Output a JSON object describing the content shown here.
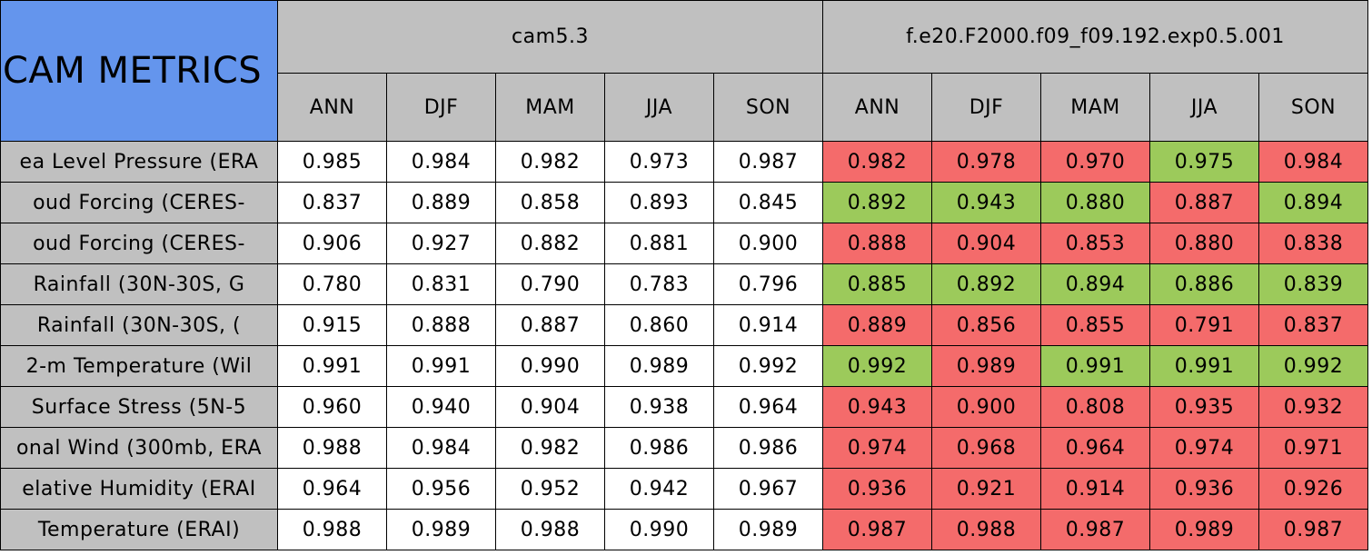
{
  "title": "CAM METRICS",
  "groups": [
    {
      "name": "cam5.3",
      "seasons": [
        "ANN",
        "DJF",
        "MAM",
        "JJA",
        "SON"
      ]
    },
    {
      "name": "f.e20.F2000.f09_f09.192.exp0.5.001",
      "seasons": [
        "ANN",
        "DJF",
        "MAM",
        "JJA",
        "SON"
      ]
    }
  ],
  "colors": {
    "header": "#c0c0c0",
    "title": "#6495ed",
    "base": "#ffffff"
  },
  "rows": [
    {
      "label": "ea Level Pressure (ERA",
      "cam": [
        "0.985",
        "0.984",
        "0.982",
        "0.973",
        "0.987"
      ],
      "exp": [
        "0.982",
        "0.978",
        "0.970",
        "0.975",
        "0.984"
      ],
      "exp_colors": [
        "#f46b6b",
        "#f46b6b",
        "#f46b6b",
        "#9cca5b",
        "#f46b6b"
      ]
    },
    {
      "label": "oud Forcing (CERES-",
      "cam": [
        "0.837",
        "0.889",
        "0.858",
        "0.893",
        "0.845"
      ],
      "exp": [
        "0.892",
        "0.943",
        "0.880",
        "0.887",
        "0.894"
      ],
      "exp_colors": [
        "#9cca5b",
        "#9cca5b",
        "#9cca5b",
        "#f46b6b",
        "#9cca5b"
      ]
    },
    {
      "label": "oud Forcing (CERES-",
      "cam": [
        "0.906",
        "0.927",
        "0.882",
        "0.881",
        "0.900"
      ],
      "exp": [
        "0.888",
        "0.904",
        "0.853",
        "0.880",
        "0.838"
      ],
      "exp_colors": [
        "#f46b6b",
        "#f46b6b",
        "#f46b6b",
        "#f46b6b",
        "#f46b6b"
      ]
    },
    {
      "label": "Rainfall (30N-30S, G",
      "cam": [
        "0.780",
        "0.831",
        "0.790",
        "0.783",
        "0.796"
      ],
      "exp": [
        "0.885",
        "0.892",
        "0.894",
        "0.886",
        "0.839"
      ],
      "exp_colors": [
        "#9cca5b",
        "#9cca5b",
        "#9cca5b",
        "#9cca5b",
        "#9cca5b"
      ]
    },
    {
      "label": "Rainfall (30N-30S, (",
      "cam": [
        "0.915",
        "0.888",
        "0.887",
        "0.860",
        "0.914"
      ],
      "exp": [
        "0.889",
        "0.856",
        "0.855",
        "0.791",
        "0.837"
      ],
      "exp_colors": [
        "#f46b6b",
        "#f46b6b",
        "#f46b6b",
        "#f46b6b",
        "#f46b6b"
      ]
    },
    {
      "label": "2-m Temperature (Wil",
      "cam": [
        "0.991",
        "0.991",
        "0.990",
        "0.989",
        "0.992"
      ],
      "exp": [
        "0.992",
        "0.989",
        "0.991",
        "0.991",
        "0.992"
      ],
      "exp_colors": [
        "#9cca5b",
        "#f46b6b",
        "#9cca5b",
        "#9cca5b",
        "#9cca5b"
      ]
    },
    {
      "label": "Surface Stress (5N-5",
      "cam": [
        "0.960",
        "0.940",
        "0.904",
        "0.938",
        "0.964"
      ],
      "exp": [
        "0.943",
        "0.900",
        "0.808",
        "0.935",
        "0.932"
      ],
      "exp_colors": [
        "#f46b6b",
        "#f46b6b",
        "#f46b6b",
        "#f46b6b",
        "#f46b6b"
      ]
    },
    {
      "label": "onal Wind (300mb, ERA",
      "cam": [
        "0.988",
        "0.984",
        "0.982",
        "0.986",
        "0.986"
      ],
      "exp": [
        "0.974",
        "0.968",
        "0.964",
        "0.974",
        "0.971"
      ],
      "exp_colors": [
        "#f46b6b",
        "#f46b6b",
        "#f46b6b",
        "#f46b6b",
        "#f46b6b"
      ]
    },
    {
      "label": "elative Humidity (ERAI",
      "cam": [
        "0.964",
        "0.956",
        "0.952",
        "0.942",
        "0.967"
      ],
      "exp": [
        "0.936",
        "0.921",
        "0.914",
        "0.936",
        "0.926"
      ],
      "exp_colors": [
        "#f46b6b",
        "#f46b6b",
        "#f46b6b",
        "#f46b6b",
        "#f46b6b"
      ]
    },
    {
      "label": "Temperature (ERAI)",
      "cam": [
        "0.988",
        "0.989",
        "0.988",
        "0.990",
        "0.989"
      ],
      "exp": [
        "0.987",
        "0.988",
        "0.987",
        "0.989",
        "0.987"
      ],
      "exp_colors": [
        "#f46b6b",
        "#f46b6b",
        "#f46b6b",
        "#f46b6b",
        "#f46b6b"
      ]
    }
  ]
}
